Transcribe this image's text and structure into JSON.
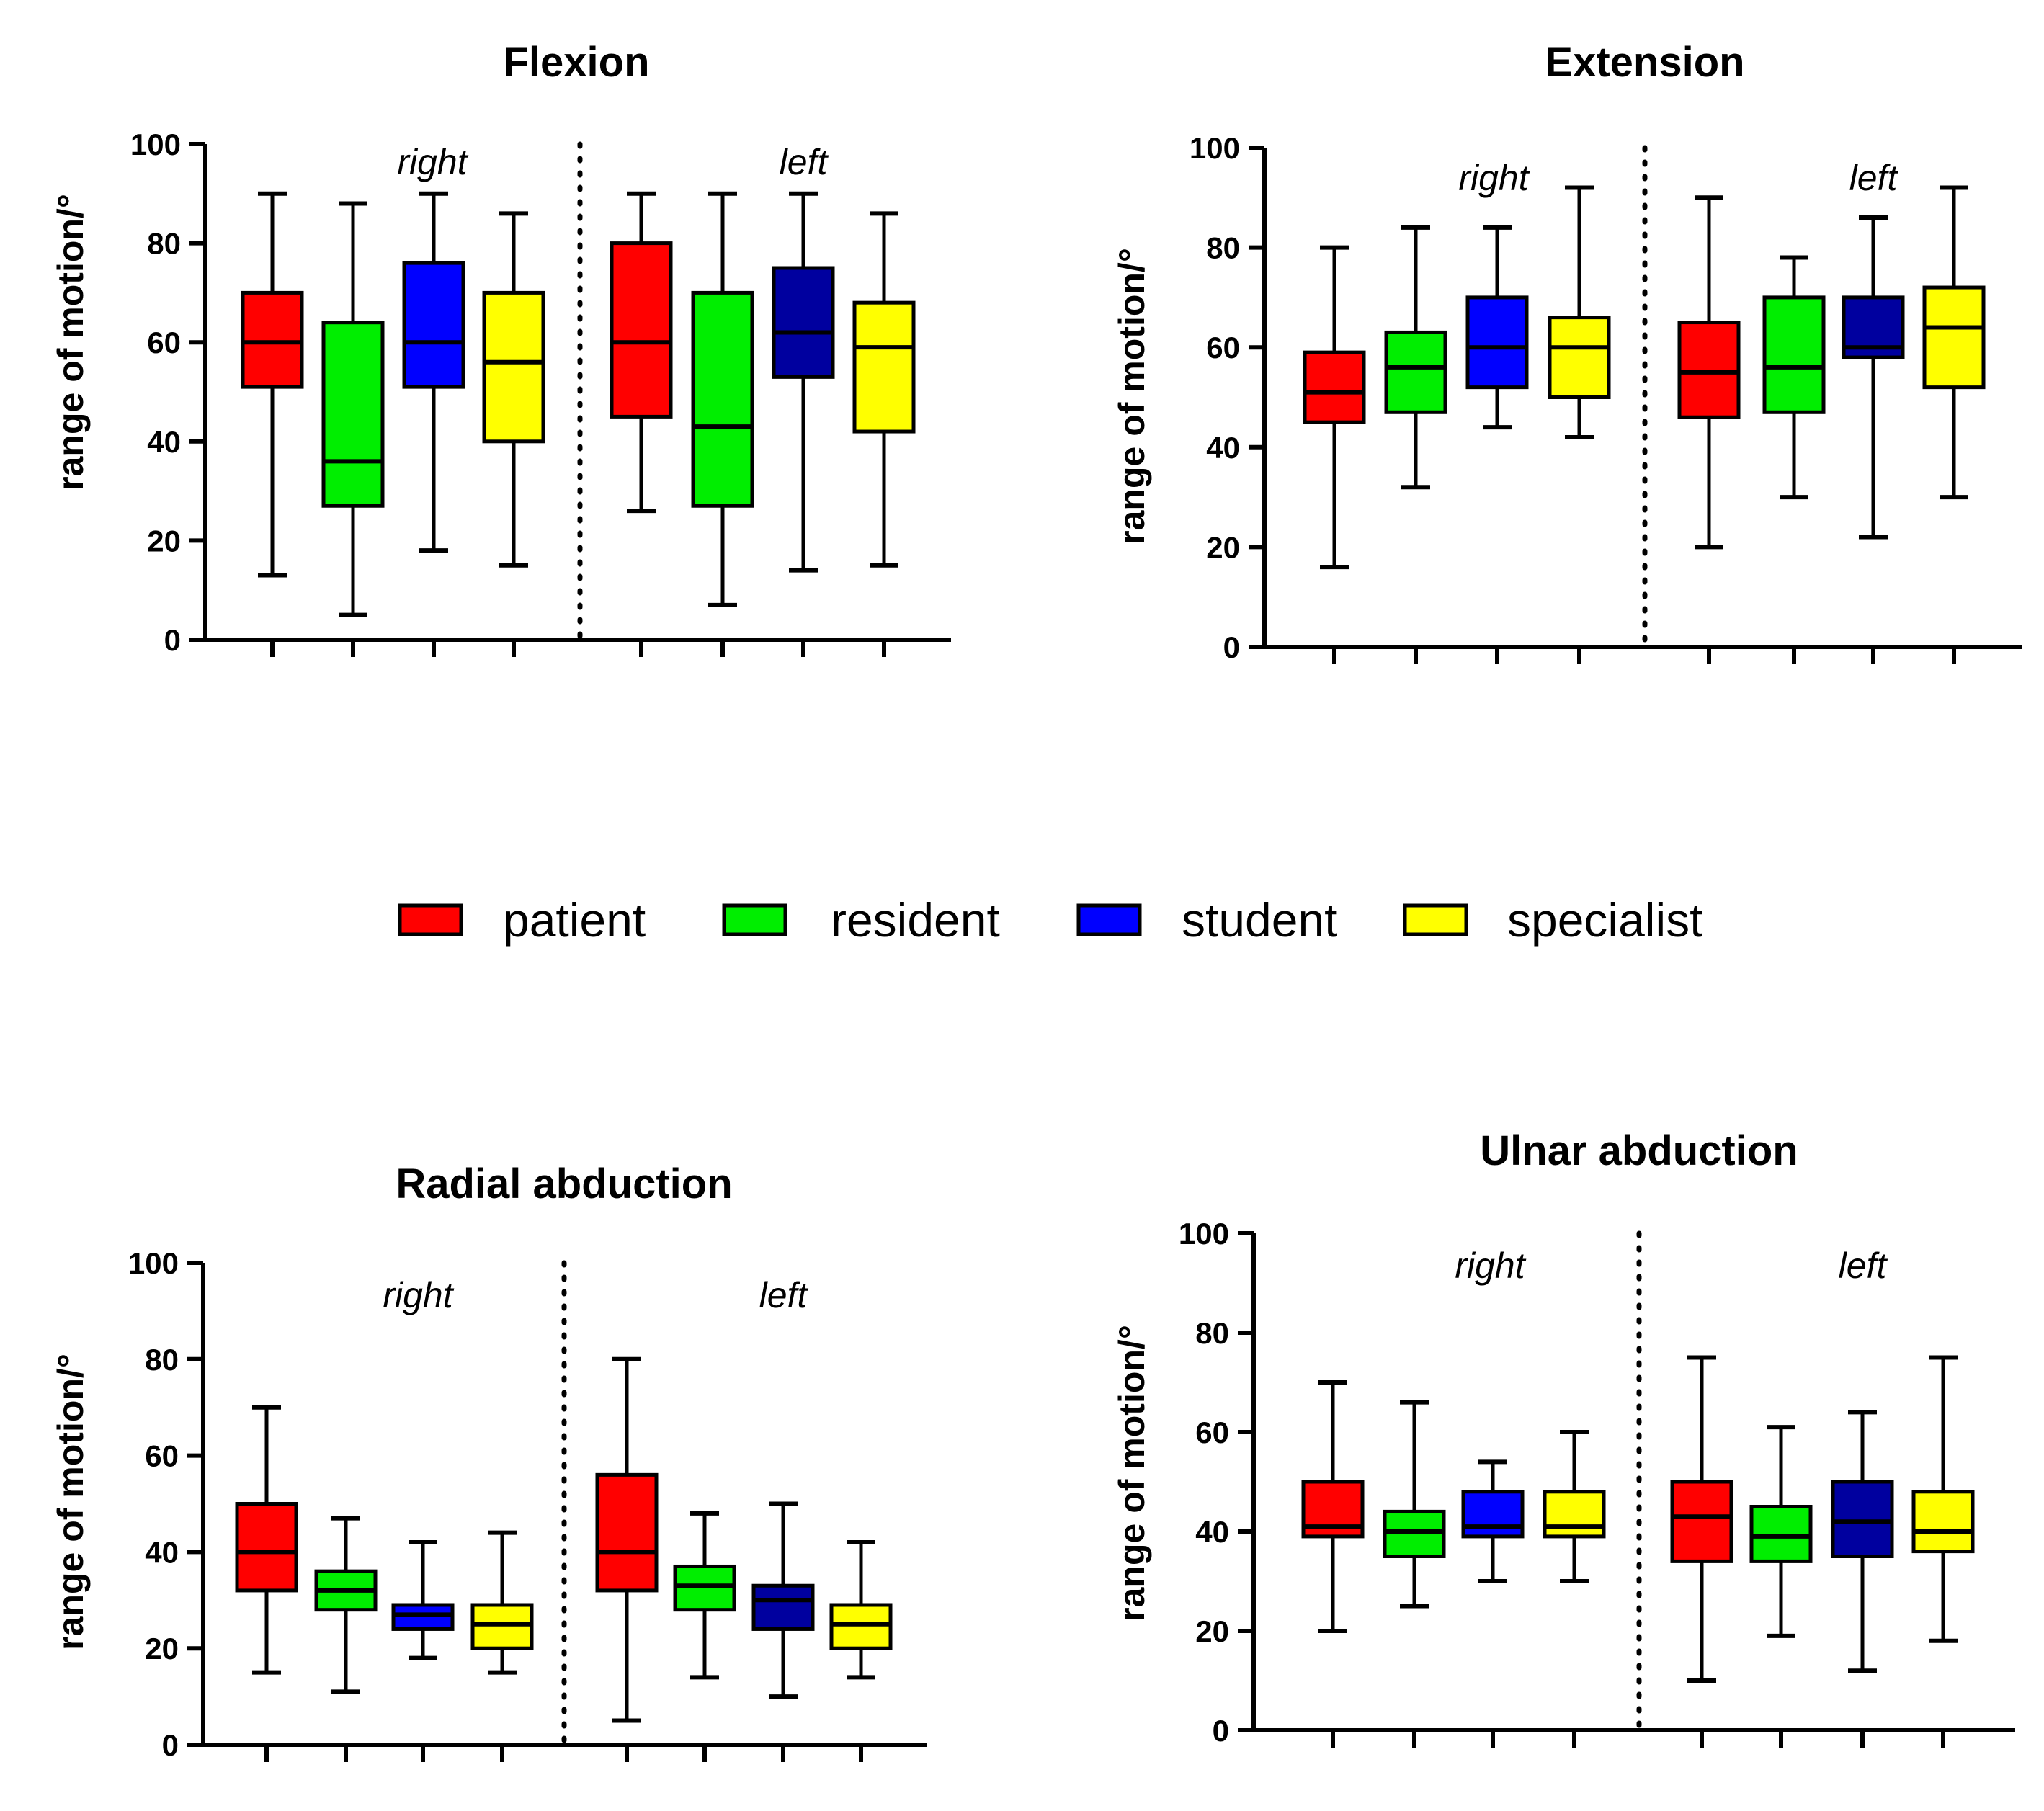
{
  "legend": [
    {
      "label": "patient",
      "color": "#ff0000"
    },
    {
      "label": "resident",
      "color": "#00ee00"
    },
    {
      "label": "student",
      "color": "#0000ff"
    },
    {
      "label": "specialist",
      "color": "#ffff00"
    }
  ],
  "chart_data": [
    {
      "type": "box",
      "title": "Flexion",
      "ylabel": "range of motion/°",
      "ylim": [
        0,
        100
      ],
      "yticks": [
        0,
        20,
        40,
        60,
        80,
        100
      ],
      "groups": [
        "right",
        "left"
      ],
      "categories": [
        "patient",
        "resident",
        "student",
        "specialist"
      ],
      "box_colors": [
        [
          "#ff0000",
          "#00ee00",
          "#0000ff",
          "#ffff00"
        ],
        [
          "#ff0000",
          "#00ee00",
          "#00009f",
          "#ffff00"
        ]
      ],
      "boxes": [
        [
          {
            "min": 13,
            "q1": 51,
            "median": 60,
            "q3": 70,
            "max": 90
          },
          {
            "min": 5,
            "q1": 27,
            "median": 36,
            "q3": 64,
            "max": 88
          },
          {
            "min": 18,
            "q1": 51,
            "median": 60,
            "q3": 76,
            "max": 90
          },
          {
            "min": 15,
            "q1": 40,
            "median": 56,
            "q3": 70,
            "max": 86
          }
        ],
        [
          {
            "min": 26,
            "q1": 45,
            "median": 60,
            "q3": 80,
            "max": 90
          },
          {
            "min": 7,
            "q1": 27,
            "median": 43,
            "q3": 70,
            "max": 90
          },
          {
            "min": 14,
            "q1": 53,
            "median": 62,
            "q3": 75,
            "max": 90
          },
          {
            "min": 15,
            "q1": 42,
            "median": 59,
            "q3": 68,
            "max": 86
          }
        ]
      ],
      "grid": false
    },
    {
      "type": "box",
      "title": "Extension",
      "ylabel": "range of motion/°",
      "ylim": [
        0,
        100
      ],
      "yticks": [
        0,
        20,
        40,
        60,
        80,
        100
      ],
      "groups": [
        "right",
        "left"
      ],
      "categories": [
        "patient",
        "resident",
        "student",
        "specialist"
      ],
      "box_colors": [
        [
          "#ff0000",
          "#00ee00",
          "#0000ff",
          "#ffff00"
        ],
        [
          "#ff0000",
          "#00ee00",
          "#00009f",
          "#ffff00"
        ]
      ],
      "boxes": [
        [
          {
            "min": 16,
            "q1": 45,
            "median": 51,
            "q3": 59,
            "max": 80
          },
          {
            "min": 32,
            "q1": 47,
            "median": 56,
            "q3": 63,
            "max": 84
          },
          {
            "min": 44,
            "q1": 52,
            "median": 60,
            "q3": 70,
            "max": 84
          },
          {
            "min": 42,
            "q1": 50,
            "median": 60,
            "q3": 66,
            "max": 92
          }
        ],
        [
          {
            "min": 20,
            "q1": 46,
            "median": 55,
            "q3": 65,
            "max": 90
          },
          {
            "min": 30,
            "q1": 47,
            "median": 56,
            "q3": 70,
            "max": 78
          },
          {
            "min": 22,
            "q1": 58,
            "median": 60,
            "q3": 70,
            "max": 86
          },
          {
            "min": 30,
            "q1": 52,
            "median": 64,
            "q3": 72,
            "max": 92
          }
        ]
      ],
      "grid": false
    },
    {
      "type": "box",
      "title": "Radial abduction",
      "ylabel": "range of motion/°",
      "ylim": [
        0,
        100
      ],
      "yticks": [
        0,
        20,
        40,
        60,
        80,
        100
      ],
      "groups": [
        "right",
        "left"
      ],
      "categories": [
        "patient",
        "resident",
        "student",
        "specialist"
      ],
      "box_colors": [
        [
          "#ff0000",
          "#00ee00",
          "#0000ff",
          "#ffff00"
        ],
        [
          "#ff0000",
          "#00ee00",
          "#00009f",
          "#ffff00"
        ]
      ],
      "boxes": [
        [
          {
            "min": 15,
            "q1": 32,
            "median": 40,
            "q3": 50,
            "max": 70
          },
          {
            "min": 11,
            "q1": 28,
            "median": 32,
            "q3": 36,
            "max": 47
          },
          {
            "min": 18,
            "q1": 24,
            "median": 27,
            "q3": 29,
            "max": 42
          },
          {
            "min": 15,
            "q1": 20,
            "median": 25,
            "q3": 29,
            "max": 44
          }
        ],
        [
          {
            "min": 5,
            "q1": 32,
            "median": 40,
            "q3": 56,
            "max": 80
          },
          {
            "min": 14,
            "q1": 28,
            "median": 33,
            "q3": 37,
            "max": 48
          },
          {
            "min": 10,
            "q1": 24,
            "median": 30,
            "q3": 33,
            "max": 50
          },
          {
            "min": 14,
            "q1": 20,
            "median": 25,
            "q3": 29,
            "max": 42
          }
        ]
      ],
      "grid": false
    },
    {
      "type": "box",
      "title": "Ulnar abduction",
      "ylabel": "range of motion/°",
      "ylim": [
        0,
        100
      ],
      "yticks": [
        0,
        20,
        40,
        60,
        80,
        100
      ],
      "groups": [
        "right",
        "left"
      ],
      "categories": [
        "patient",
        "resident",
        "student",
        "specialist"
      ],
      "box_colors": [
        [
          "#ff0000",
          "#00ee00",
          "#0000ff",
          "#ffff00"
        ],
        [
          "#ff0000",
          "#00ee00",
          "#00009f",
          "#ffff00"
        ]
      ],
      "boxes": [
        [
          {
            "min": 20,
            "q1": 39,
            "median": 41,
            "q3": 50,
            "max": 70
          },
          {
            "min": 25,
            "q1": 35,
            "median": 40,
            "q3": 44,
            "max": 66
          },
          {
            "min": 30,
            "q1": 39,
            "median": 41,
            "q3": 48,
            "max": 54
          },
          {
            "min": 30,
            "q1": 39,
            "median": 41,
            "q3": 48,
            "max": 60
          }
        ],
        [
          {
            "min": 10,
            "q1": 34,
            "median": 43,
            "q3": 50,
            "max": 75
          },
          {
            "min": 19,
            "q1": 34,
            "median": 39,
            "q3": 45,
            "max": 61
          },
          {
            "min": 12,
            "q1": 35,
            "median": 42,
            "q3": 50,
            "max": 64
          },
          {
            "min": 18,
            "q1": 36,
            "median": 40,
            "q3": 48,
            "max": 75
          }
        ]
      ],
      "grid": false
    }
  ]
}
